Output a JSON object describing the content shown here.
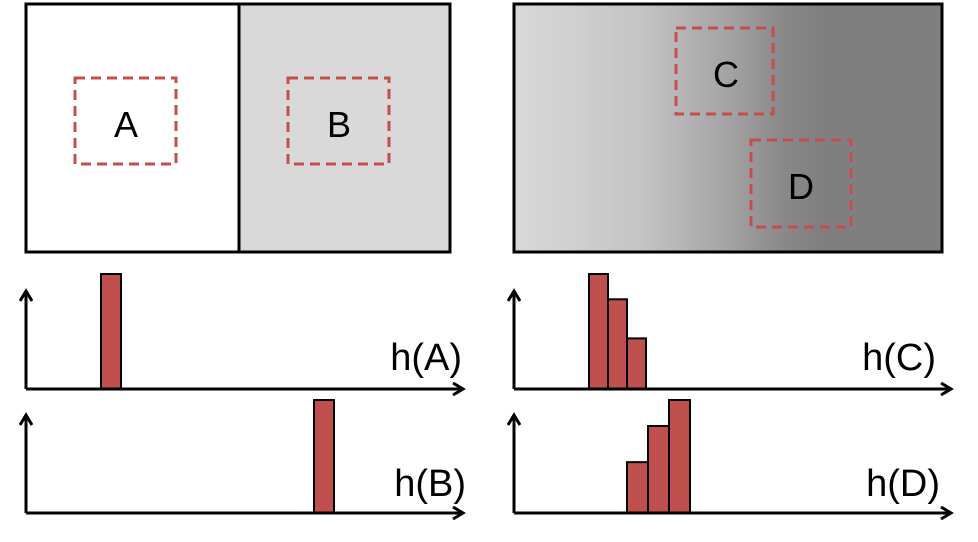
{
  "colors": {
    "bar_fill": "#c0504d",
    "dashed_box": "#c0504d",
    "frame": "#000000",
    "panel_b_fill": "#d9d9d9",
    "gradient_light": "#d9d9d9",
    "gradient_dark": "#808080"
  },
  "regions": {
    "a": "A",
    "b": "B",
    "c": "C",
    "d": "D"
  },
  "histograms": {
    "a": {
      "label": "h(A)",
      "values": [
        1
      ]
    },
    "b": {
      "label": "h(B)",
      "values": [
        1
      ]
    },
    "c": {
      "label": "h(C)",
      "values": [
        1.0,
        0.78,
        0.44
      ]
    },
    "d": {
      "label": "h(D)",
      "values": [
        0.45,
        0.77,
        1.0
      ]
    }
  }
}
